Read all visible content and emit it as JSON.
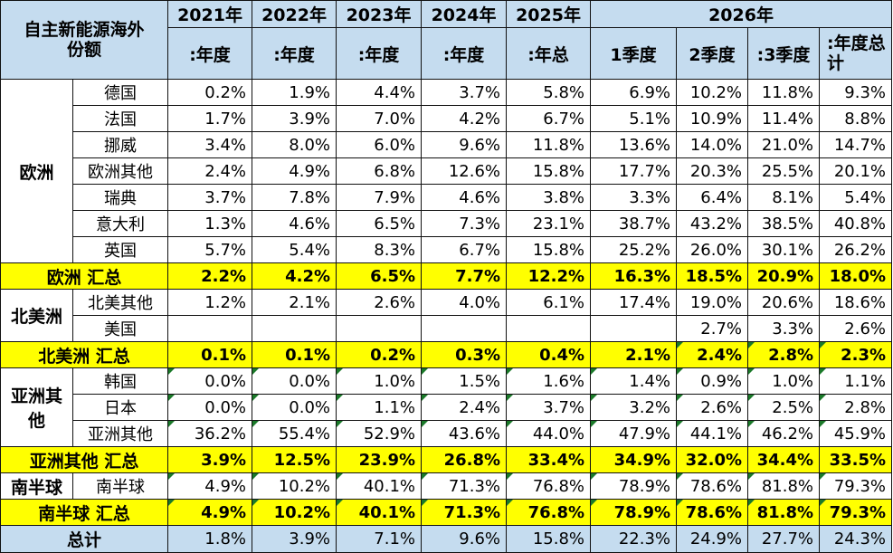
{
  "header": {
    "corner": "自主新能源海外份额",
    "years": [
      "2021年",
      "2022年",
      "2023年",
      "2024年",
      "2025年",
      "2026年"
    ],
    "periods": [
      ":年度",
      ":年度",
      ":年度",
      ":年度",
      ":年总",
      "1季度",
      "2季度",
      ":3季度",
      ":年度总计"
    ]
  },
  "europe": {
    "region": "欧洲",
    "rows": [
      {
        "name": "德国",
        "v": [
          "0.2%",
          "1.9%",
          "4.4%",
          "3.7%",
          "5.8%",
          "6.9%",
          "10.2%",
          "11.8%",
          "9.3%"
        ]
      },
      {
        "name": "法国",
        "v": [
          "1.7%",
          "3.9%",
          "7.0%",
          "4.2%",
          "6.7%",
          "5.1%",
          "10.9%",
          "11.4%",
          "8.8%"
        ]
      },
      {
        "name": "挪威",
        "v": [
          "3.4%",
          "8.0%",
          "6.0%",
          "9.6%",
          "11.8%",
          "13.6%",
          "14.0%",
          "21.0%",
          "14.7%"
        ]
      },
      {
        "name": "欧洲其他",
        "v": [
          "2.4%",
          "4.9%",
          "6.8%",
          "12.6%",
          "15.8%",
          "17.7%",
          "20.3%",
          "25.5%",
          "20.1%"
        ]
      },
      {
        "name": "瑞典",
        "v": [
          "3.7%",
          "7.8%",
          "7.9%",
          "4.6%",
          "3.8%",
          "3.3%",
          "6.4%",
          "8.1%",
          "5.4%"
        ]
      },
      {
        "name": "意大利",
        "v": [
          "1.3%",
          "4.6%",
          "6.5%",
          "7.3%",
          "23.1%",
          "38.7%",
          "43.2%",
          "38.5%",
          "40.8%"
        ]
      },
      {
        "name": "英国",
        "v": [
          "5.7%",
          "5.4%",
          "8.3%",
          "6.7%",
          "15.8%",
          "25.2%",
          "26.0%",
          "30.1%",
          "26.2%"
        ]
      }
    ],
    "subtotal": {
      "label": "欧洲 汇总",
      "v": [
        "2.2%",
        "4.2%",
        "6.5%",
        "7.7%",
        "12.2%",
        "16.3%",
        "18.5%",
        "20.9%",
        "18.0%"
      ]
    }
  },
  "north_america": {
    "region": "北美洲",
    "rows": [
      {
        "name": "北美其他",
        "v": [
          "1.2%",
          "2.1%",
          "2.6%",
          "4.0%",
          "6.1%",
          "17.4%",
          "19.0%",
          "20.6%",
          "18.6%"
        ]
      },
      {
        "name": "美国",
        "v": [
          "",
          "",
          "",
          "",
          "",
          "",
          "2.7%",
          "3.3%",
          "2.6%"
        ]
      }
    ],
    "subtotal": {
      "label": "北美洲 汇总",
      "v": [
        "0.1%",
        "0.1%",
        "0.2%",
        "0.3%",
        "0.4%",
        "2.1%",
        "2.4%",
        "2.8%",
        "2.3%"
      ]
    }
  },
  "asia": {
    "region": "亚洲其他",
    "rows": [
      {
        "name": "韩国",
        "v": [
          "0.0%",
          "0.0%",
          "1.0%",
          "1.5%",
          "1.6%",
          "1.4%",
          "0.9%",
          "1.0%",
          "1.1%"
        ]
      },
      {
        "name": "日本",
        "v": [
          "0.0%",
          "0.0%",
          "1.1%",
          "2.4%",
          "3.7%",
          "3.2%",
          "2.6%",
          "2.5%",
          "2.8%"
        ]
      },
      {
        "name": "亚洲其他",
        "v": [
          "36.2%",
          "55.4%",
          "52.9%",
          "43.6%",
          "44.0%",
          "47.9%",
          "44.1%",
          "46.2%",
          "45.9%"
        ]
      }
    ],
    "subtotal": {
      "label": "亚洲其他 汇总",
      "v": [
        "3.9%",
        "12.5%",
        "23.9%",
        "26.8%",
        "33.4%",
        "34.9%",
        "32.0%",
        "34.4%",
        "33.5%"
      ]
    }
  },
  "southern": {
    "region": "南半球",
    "rows": [
      {
        "name": "南半球",
        "v": [
          "4.9%",
          "10.2%",
          "40.1%",
          "71.3%",
          "76.8%",
          "78.9%",
          "78.6%",
          "81.8%",
          "79.3%"
        ]
      }
    ],
    "subtotal": {
      "label": "南半球 汇总",
      "v": [
        "4.9%",
        "10.2%",
        "40.1%",
        "71.3%",
        "76.8%",
        "78.9%",
        "78.6%",
        "81.8%",
        "79.3%"
      ]
    }
  },
  "total": {
    "label": "总计",
    "v": [
      "1.8%",
      "3.9%",
      "7.1%",
      "9.6%",
      "15.8%",
      "22.3%",
      "24.9%",
      "27.7%",
      "24.3%"
    ]
  }
}
